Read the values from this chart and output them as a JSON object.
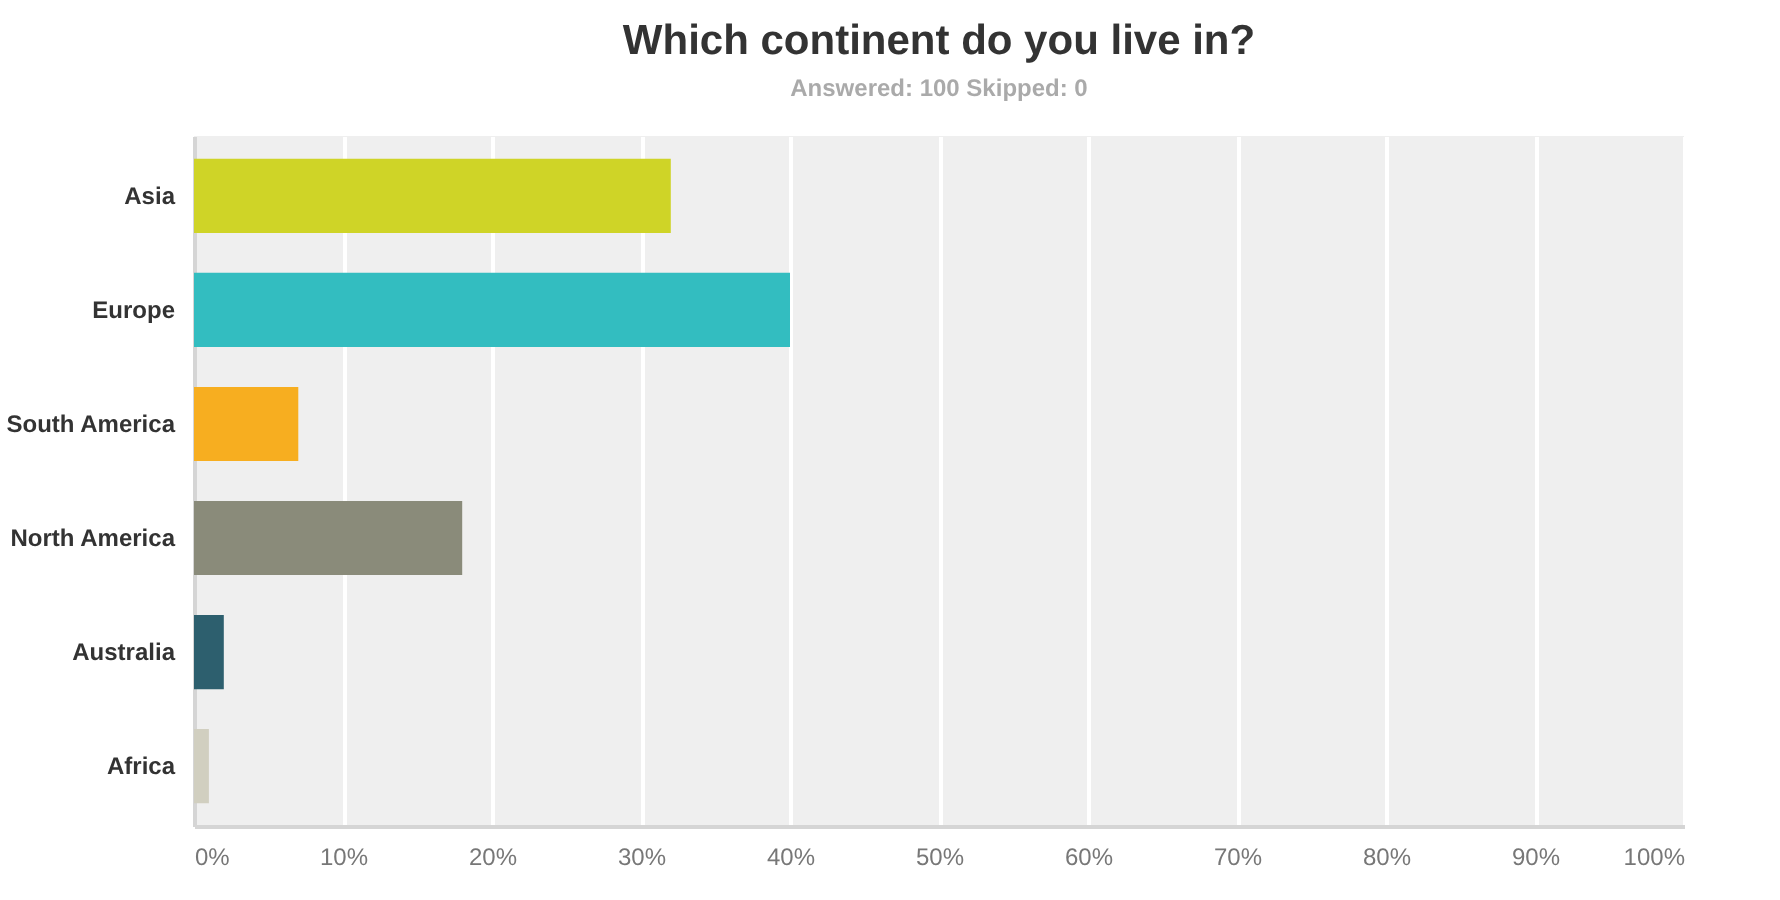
{
  "chart_data": {
    "type": "bar",
    "orientation": "horizontal",
    "title": "Which continent do you live in?",
    "subtitle": "Answered: 100    Skipped: 0",
    "categories": [
      "Asia",
      "Europe",
      "South America",
      "North America",
      "Australia",
      "Africa"
    ],
    "values": [
      32,
      40,
      7,
      18,
      2,
      1
    ],
    "colors": [
      "#cfd427",
      "#33bdc0",
      "#f7ae20",
      "#8a8b7a",
      "#2d5f6e",
      "#d1cfc0"
    ],
    "xlim": [
      0,
      100
    ],
    "xticks": [
      {
        "value": 0,
        "label": "0%"
      },
      {
        "value": 10,
        "label": "10%"
      },
      {
        "value": 20,
        "label": "20%"
      },
      {
        "value": 30,
        "label": "30%"
      },
      {
        "value": 40,
        "label": "40%"
      },
      {
        "value": 50,
        "label": "50%"
      },
      {
        "value": 60,
        "label": "60%"
      },
      {
        "value": 70,
        "label": "70%"
      },
      {
        "value": 80,
        "label": "80%"
      },
      {
        "value": 90,
        "label": "90%"
      },
      {
        "value": 100,
        "label": "100%"
      }
    ],
    "grid": "x"
  }
}
